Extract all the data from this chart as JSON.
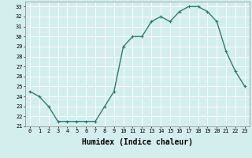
{
  "x": [
    0,
    1,
    2,
    3,
    4,
    5,
    6,
    7,
    8,
    9,
    10,
    11,
    12,
    13,
    14,
    15,
    16,
    17,
    18,
    19,
    20,
    21,
    22,
    23
  ],
  "y": [
    24.5,
    24.0,
    23.0,
    21.5,
    21.5,
    21.5,
    21.5,
    21.5,
    23.0,
    24.5,
    29.0,
    30.0,
    30.0,
    31.5,
    32.0,
    31.5,
    32.5,
    33.0,
    33.0,
    32.5,
    31.5,
    28.5,
    26.5,
    25.0
  ],
  "line_color": "#2e7d6e",
  "marker": "+",
  "marker_size": 3,
  "title": "",
  "xlabel": "Humidex (Indice chaleur)",
  "ylabel": "",
  "xlim": [
    -0.5,
    23.5
  ],
  "ylim": [
    21.0,
    33.5
  ],
  "yticks": [
    21,
    22,
    23,
    24,
    25,
    26,
    27,
    28,
    29,
    30,
    31,
    32,
    33
  ],
  "xticks": [
    0,
    1,
    2,
    3,
    4,
    5,
    6,
    7,
    8,
    9,
    10,
    11,
    12,
    13,
    14,
    15,
    16,
    17,
    18,
    19,
    20,
    21,
    22,
    23
  ],
  "bg_color": "#d4eeee",
  "grid_color": "#ffffff",
  "tick_label_fontsize": 5.0,
  "xlabel_fontsize": 7.0,
  "line_width": 1.0
}
